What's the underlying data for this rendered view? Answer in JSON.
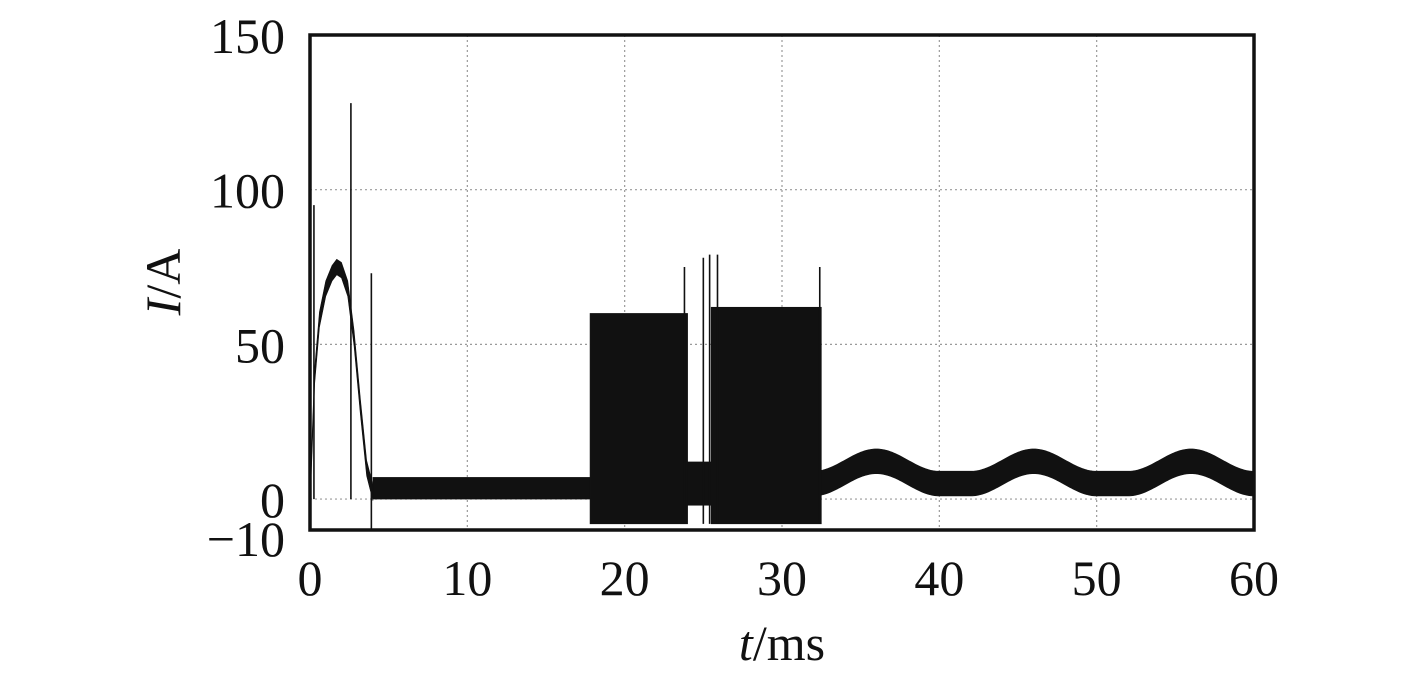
{
  "chart_data": {
    "type": "line",
    "title": "",
    "xlabel_italic": "t",
    "xlabel_unit": "/ms",
    "ylabel_italic": "I",
    "ylabel_unit": "/A",
    "xlim": [
      0,
      60
    ],
    "ylim": [
      -10,
      150
    ],
    "x_ticks": [
      0,
      10,
      20,
      30,
      40,
      50,
      60
    ],
    "y_ticks": [
      150,
      100,
      50,
      0,
      -10
    ],
    "x_tick_labels": [
      "0",
      "10",
      "20",
      "30",
      "40",
      "50",
      "60"
    ],
    "y_tick_labels": [
      "150",
      "100",
      "50",
      "0",
      "−10"
    ],
    "grid": true,
    "grid_style": "dotted",
    "series": [
      {
        "color": "#111111",
        "startup_pulse": {
          "x": [
            0,
            0.3,
            0.6,
            1.0,
            1.4,
            1.7,
            2.0,
            2.4,
            2.8,
            3.2,
            3.6,
            4.0
          ],
          "y": [
            0,
            40,
            58,
            68,
            73,
            75,
            74,
            68,
            52,
            30,
            10,
            2
          ]
        },
        "ripple_bands": [
          {
            "x": [
              4.0,
              17.8
            ],
            "low": 0,
            "high": 7
          },
          {
            "x": [
              17.8,
              24.0
            ],
            "low": -8,
            "high": 60
          },
          {
            "x": [
              24.0,
              25.5
            ],
            "low": -2,
            "high": 12
          },
          {
            "x": [
              25.5,
              32.5
            ],
            "low": -8,
            "high": 62
          }
        ],
        "oscillation": {
          "x_start": 32.5,
          "x_end": 60,
          "center": 5,
          "half_band": 4,
          "bumps": [
            {
              "x": 36,
              "height": 8
            },
            {
              "x": 46,
              "height": 8
            },
            {
              "x": 56,
              "height": 8
            }
          ]
        },
        "spikes": [
          {
            "x": 0.25,
            "y_low": 0,
            "y_high": 95
          },
          {
            "x": 2.6,
            "y_low": 0,
            "y_high": 128
          },
          {
            "x": 3.9,
            "y_low": -10,
            "y_high": 73
          },
          {
            "x": 23.8,
            "y_low": -5,
            "y_high": 75
          },
          {
            "x": 25.0,
            "y_low": -8,
            "y_high": 78
          },
          {
            "x": 25.4,
            "y_low": -8,
            "y_high": 79
          },
          {
            "x": 25.9,
            "y_low": -8,
            "y_high": 79
          },
          {
            "x": 32.4,
            "y_low": -8,
            "y_high": 75
          }
        ]
      }
    ]
  }
}
